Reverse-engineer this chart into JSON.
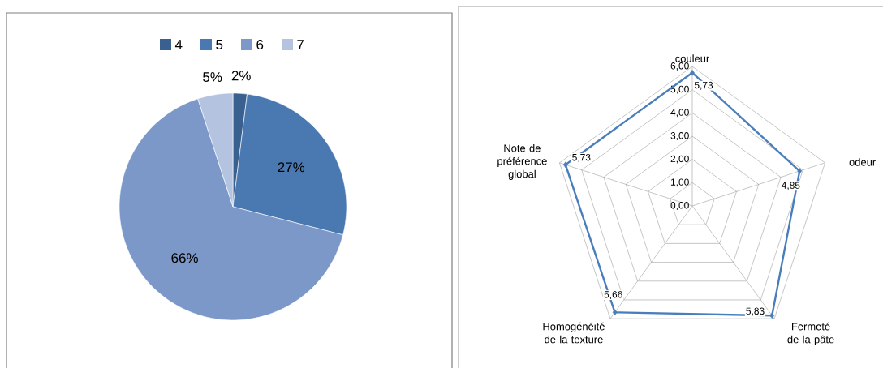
{
  "chart_data": [
    {
      "type": "pie",
      "categories": [
        "4",
        "5",
        "6",
        "7"
      ],
      "values": [
        2,
        27,
        66,
        5
      ],
      "colors": [
        "#3a6090",
        "#4a78b0",
        "#7b98c8",
        "#b4c4e0"
      ],
      "value_labels": [
        "2%",
        "27%",
        "66%",
        "5%"
      ],
      "legend": "top"
    },
    {
      "type": "radar",
      "categories": [
        "couleur",
        "odeur",
        "Fermeté de la pâte",
        "Homogénéité de la texture",
        "Note de préférence global"
      ],
      "series": [
        {
          "color": "#4a7ebb",
          "values": [
            5.73,
            4.85,
            5.83,
            5.66,
            5.73
          ]
        }
      ],
      "value_labels": [
        "5,73",
        "4,85",
        "5,83",
        "5,66",
        "5,73"
      ],
      "ylim": [
        0,
        6
      ],
      "yticks": [
        {
          "value": 0,
          "label": "0,00"
        },
        {
          "value": 1,
          "label": "1,00"
        },
        {
          "value": 2,
          "label": "2,00"
        },
        {
          "value": 3,
          "label": "3,00"
        },
        {
          "value": 4,
          "label": "4,00"
        },
        {
          "value": 5,
          "label": "5,00"
        },
        {
          "value": 6,
          "label": "6,00"
        }
      ],
      "marker": "diamond",
      "grid": true
    }
  ]
}
